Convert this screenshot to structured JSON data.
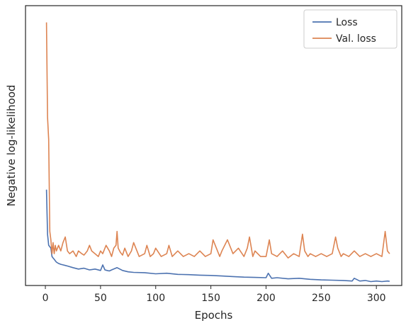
{
  "chart_data": {
    "type": "line",
    "title": "",
    "xlabel": "Epochs",
    "ylabel": "Negative log-likelihood",
    "xlim": [
      -18,
      323
    ],
    "ylim": [
      0.96,
      11.0
    ],
    "x_ticks": [
      0,
      50,
      100,
      150,
      200,
      250,
      300
    ],
    "x_tick_labels": [
      "0",
      "50",
      "100",
      "150",
      "200",
      "250",
      "300"
    ],
    "y_tick_labels": [],
    "grid": false,
    "legend_position": "top-right",
    "series": [
      {
        "name": "Loss",
        "color": "#4c72b0",
        "x": [
          1,
          2,
          3,
          4,
          5,
          6,
          7,
          8,
          9,
          10,
          12,
          14,
          16,
          18,
          20,
          25,
          30,
          35,
          40,
          45,
          50,
          52,
          54,
          56,
          58,
          60,
          65,
          70,
          75,
          80,
          90,
          100,
          110,
          120,
          130,
          140,
          150,
          160,
          170,
          180,
          190,
          200,
          202,
          205,
          210,
          220,
          230,
          240,
          250,
          260,
          270,
          278,
          280,
          285,
          290,
          295,
          300,
          305,
          310,
          312
        ],
        "y": [
          4.4,
          2.8,
          2.4,
          2.35,
          2.3,
          2.0,
          1.95,
          1.9,
          1.85,
          1.8,
          1.75,
          1.72,
          1.7,
          1.68,
          1.66,
          1.6,
          1.55,
          1.58,
          1.52,
          1.55,
          1.5,
          1.7,
          1.52,
          1.5,
          1.48,
          1.52,
          1.6,
          1.5,
          1.45,
          1.43,
          1.42,
          1.38,
          1.4,
          1.36,
          1.35,
          1.33,
          1.32,
          1.3,
          1.28,
          1.26,
          1.25,
          1.24,
          1.4,
          1.22,
          1.24,
          1.2,
          1.22,
          1.18,
          1.16,
          1.15,
          1.14,
          1.12,
          1.22,
          1.12,
          1.14,
          1.1,
          1.12,
          1.1,
          1.12,
          1.11
        ]
      },
      {
        "name": "Val. loss",
        "color": "#dd8452",
        "x": [
          1,
          2,
          3,
          4,
          5,
          6,
          7,
          8,
          9,
          10,
          12,
          14,
          16,
          18,
          20,
          22,
          25,
          28,
          30,
          33,
          35,
          38,
          40,
          42,
          45,
          48,
          50,
          52,
          55,
          58,
          60,
          62,
          64,
          65,
          66,
          68,
          70,
          72,
          75,
          78,
          80,
          85,
          90,
          92,
          95,
          98,
          100,
          105,
          110,
          112,
          115,
          120,
          125,
          130,
          135,
          140,
          145,
          150,
          152,
          155,
          158,
          160,
          165,
          170,
          175,
          180,
          183,
          185,
          188,
          190,
          195,
          200,
          203,
          205,
          210,
          215,
          220,
          225,
          230,
          233,
          235,
          238,
          240,
          245,
          250,
          255,
          260,
          263,
          265,
          268,
          270,
          275,
          280,
          285,
          290,
          295,
          300,
          305,
          308,
          310,
          312
        ],
        "y": [
          10.4,
          7.0,
          6.2,
          2.9,
          2.6,
          2.1,
          2.5,
          2.1,
          2.4,
          2.2,
          2.4,
          2.2,
          2.5,
          2.7,
          2.2,
          2.1,
          2.2,
          2.0,
          2.2,
          2.1,
          2.05,
          2.2,
          2.4,
          2.2,
          2.1,
          2.0,
          2.2,
          2.1,
          2.4,
          2.2,
          2.0,
          2.3,
          2.4,
          2.9,
          2.3,
          2.15,
          2.05,
          2.3,
          2.0,
          2.2,
          2.5,
          2.0,
          2.1,
          2.4,
          2.0,
          2.1,
          2.3,
          2.0,
          2.1,
          2.4,
          2.0,
          2.2,
          2.0,
          2.1,
          2.0,
          2.2,
          2.0,
          2.1,
          2.6,
          2.3,
          2.0,
          2.2,
          2.6,
          2.1,
          2.3,
          2.0,
          2.3,
          2.7,
          2.0,
          2.2,
          2.0,
          2.0,
          2.6,
          2.1,
          2.0,
          2.2,
          1.95,
          2.1,
          2.0,
          2.8,
          2.2,
          2.0,
          2.1,
          2.0,
          2.1,
          2.0,
          2.1,
          2.7,
          2.3,
          2.0,
          2.1,
          2.0,
          2.2,
          2.0,
          2.1,
          2.0,
          2.1,
          2.0,
          2.9,
          2.2,
          2.1
        ]
      }
    ]
  }
}
